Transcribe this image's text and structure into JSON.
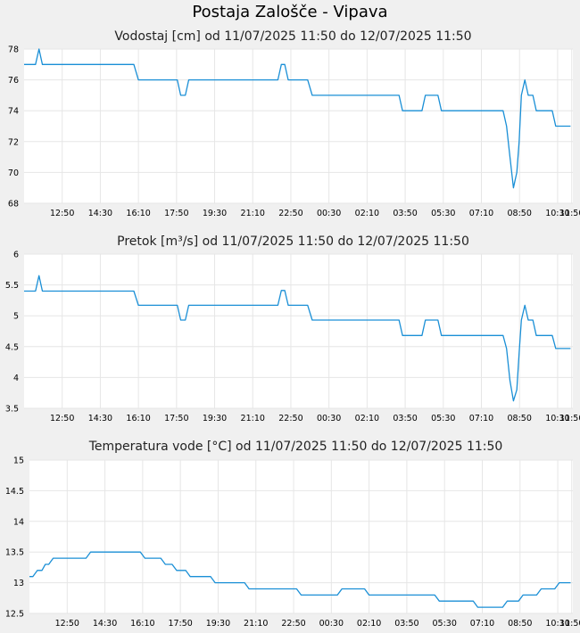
{
  "page_title": "Postaja Zalošče - Vipava",
  "colors": {
    "line": "#1a8fd6",
    "grid": "#e6e6e6",
    "background": "#f0f0f0",
    "plot": "#ffffff"
  },
  "chart_data": [
    {
      "type": "line",
      "title": "Vodostaj [cm] od 11/07/2025 11:50 do 12/07/2025 11:50",
      "xlabel": "",
      "ylabel": "",
      "ylim": [
        68,
        78
      ],
      "yticks": [
        "68",
        "70",
        "72",
        "74",
        "76",
        "78"
      ],
      "xticks": [
        "12:50",
        "14:30",
        "16:10",
        "17:50",
        "19:30",
        "21:10",
        "22:50",
        "00:30",
        "02:10",
        "03:50",
        "05:30",
        "07:10",
        "08:50",
        "10:30",
        "11:50"
      ],
      "grid": true,
      "legend": "none",
      "series": [
        {
          "values": [
            [
              0,
              77
            ],
            [
              0.5,
              77
            ],
            [
              0.65,
              78
            ],
            [
              0.8,
              77
            ],
            [
              4.8,
              77
            ],
            [
              5,
              76
            ],
            [
              6.7,
              76
            ],
            [
              6.85,
              75
            ],
            [
              7.05,
              75
            ],
            [
              7.2,
              76
            ],
            [
              11.1,
              76
            ],
            [
              11.25,
              77
            ],
            [
              11.4,
              77
            ],
            [
              11.55,
              76
            ],
            [
              12.4,
              76
            ],
            [
              12.6,
              75
            ],
            [
              16.4,
              75
            ],
            [
              16.55,
              74
            ],
            [
              17.4,
              74
            ],
            [
              17.55,
              75
            ],
            [
              18.1,
              75
            ],
            [
              18.25,
              74
            ],
            [
              20.95,
              74
            ],
            [
              21.1,
              73
            ],
            [
              21.25,
              71
            ],
            [
              21.4,
              69
            ],
            [
              21.55,
              70
            ],
            [
              21.65,
              72
            ],
            [
              21.75,
              75
            ],
            [
              21.9,
              76
            ],
            [
              22.05,
              75
            ],
            [
              22.25,
              75
            ],
            [
              22.4,
              74
            ],
            [
              23.1,
              74
            ],
            [
              23.25,
              73
            ],
            [
              23.9,
              73
            ]
          ]
        }
      ]
    },
    {
      "type": "line",
      "title": "Pretok [m³/s] od 11/07/2025 11:50 do 12/07/2025 11:50",
      "xlabel": "",
      "ylabel": "",
      "ylim": [
        3.5,
        6
      ],
      "yticks": [
        "3.5",
        "4",
        "4.5",
        "5",
        "5.5",
        "6"
      ],
      "xticks": [
        "12:50",
        "14:30",
        "16:10",
        "17:50",
        "19:30",
        "21:10",
        "22:50",
        "00:30",
        "02:10",
        "03:50",
        "05:30",
        "07:10",
        "08:50",
        "10:30",
        "11:50"
      ],
      "grid": true,
      "legend": "none",
      "series": [
        {
          "values": [
            [
              0,
              5.4
            ],
            [
              0.5,
              5.4
            ],
            [
              0.65,
              5.65
            ],
            [
              0.8,
              5.4
            ],
            [
              4.8,
              5.4
            ],
            [
              5,
              5.17
            ],
            [
              6.7,
              5.17
            ],
            [
              6.85,
              4.93
            ],
            [
              7.05,
              4.93
            ],
            [
              7.2,
              5.17
            ],
            [
              11.1,
              5.17
            ],
            [
              11.25,
              5.41
            ],
            [
              11.4,
              5.41
            ],
            [
              11.55,
              5.17
            ],
            [
              12.4,
              5.17
            ],
            [
              12.6,
              4.93
            ],
            [
              16.4,
              4.93
            ],
            [
              16.55,
              4.68
            ],
            [
              17.4,
              4.68
            ],
            [
              17.55,
              4.93
            ],
            [
              18.1,
              4.93
            ],
            [
              18.25,
              4.68
            ],
            [
              20.95,
              4.68
            ],
            [
              21.1,
              4.47
            ],
            [
              21.25,
              3.95
            ],
            [
              21.4,
              3.62
            ],
            [
              21.55,
              3.8
            ],
            [
              21.65,
              4.4
            ],
            [
              21.75,
              4.93
            ],
            [
              21.9,
              5.17
            ],
            [
              22.05,
              4.93
            ],
            [
              22.25,
              4.93
            ],
            [
              22.4,
              4.68
            ],
            [
              23.1,
              4.68
            ],
            [
              23.25,
              4.47
            ],
            [
              23.9,
              4.47
            ]
          ]
        }
      ]
    },
    {
      "type": "line",
      "title": "Temperatura vode [°C] od 11/07/2025 11:50 do 12/07/2025 11:50",
      "xlabel": "",
      "ylabel": "",
      "ylim": [
        12.5,
        15
      ],
      "yticks": [
        "12.5",
        "13",
        "13.5",
        "14",
        "14.5",
        "15"
      ],
      "xticks": [
        "12:50",
        "14:30",
        "16:10",
        "17:50",
        "19:30",
        "21:10",
        "22:50",
        "00:30",
        "02:10",
        "03:50",
        "05:30",
        "07:10",
        "08:50",
        "10:30",
        "11:50"
      ],
      "grid": true,
      "legend": "none",
      "series": [
        {
          "values": [
            [
              0,
              13.1
            ],
            [
              0.15,
              13.1
            ],
            [
              0.35,
              13.2
            ],
            [
              0.55,
              13.2
            ],
            [
              0.7,
              13.3
            ],
            [
              0.85,
              13.3
            ],
            [
              1.05,
              13.4
            ],
            [
              2.5,
              13.4
            ],
            [
              2.7,
              13.5
            ],
            [
              4.9,
              13.5
            ],
            [
              5.1,
              13.4
            ],
            [
              5.8,
              13.4
            ],
            [
              6,
              13.3
            ],
            [
              6.3,
              13.3
            ],
            [
              6.5,
              13.2
            ],
            [
              6.9,
              13.2
            ],
            [
              7.1,
              13.1
            ],
            [
              8,
              13.1
            ],
            [
              8.2,
              13
            ],
            [
              9.5,
              13
            ],
            [
              9.7,
              12.9
            ],
            [
              11.8,
              12.9
            ],
            [
              12,
              12.8
            ],
            [
              13.6,
              12.8
            ],
            [
              13.8,
              12.9
            ],
            [
              14.8,
              12.9
            ],
            [
              15,
              12.8
            ],
            [
              17.9,
              12.8
            ],
            [
              18.1,
              12.7
            ],
            [
              19.6,
              12.7
            ],
            [
              19.8,
              12.6
            ],
            [
              20.9,
              12.6
            ],
            [
              21.1,
              12.7
            ],
            [
              21.6,
              12.7
            ],
            [
              21.8,
              12.8
            ],
            [
              22.4,
              12.8
            ],
            [
              22.6,
              12.9
            ],
            [
              23.2,
              12.9
            ],
            [
              23.4,
              13
            ],
            [
              23.9,
              13
            ]
          ]
        }
      ]
    }
  ]
}
